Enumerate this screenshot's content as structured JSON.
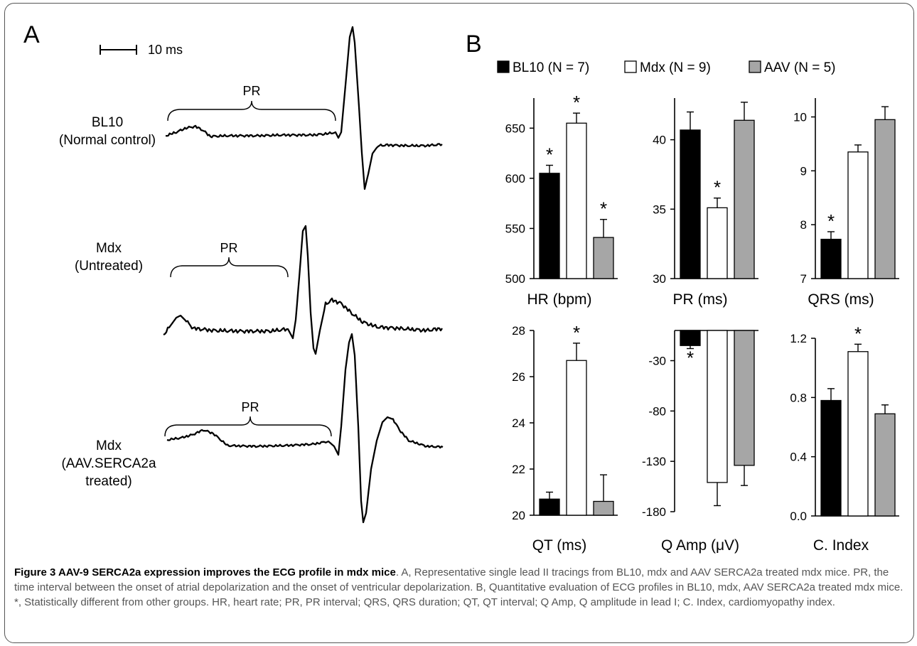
{
  "panel_a": {
    "label": "A",
    "scale_bar": "10 ms",
    "pr_label": "PR",
    "tracings": [
      {
        "line1": "BL10",
        "line2": "(Normal control)",
        "line3": ""
      },
      {
        "line1": "Mdx",
        "line2": "(Untreated)",
        "line3": ""
      },
      {
        "line1": "Mdx",
        "line2": "(AAV.SERCA2a",
        "line3": "treated)"
      }
    ]
  },
  "panel_b": {
    "label": "B",
    "legend": [
      "BL10 (N = 7)",
      "Mdx (N = 9)",
      "AAV (N = 5)"
    ]
  },
  "colors": {
    "bl10": "#000000",
    "mdx": "#ffffff",
    "aav": "#a6a6a6"
  },
  "chart_data": [
    {
      "type": "bar",
      "xlabel": "HR (bpm)",
      "categories": [
        "BL10",
        "Mdx",
        "AAV"
      ],
      "values": [
        605,
        655,
        541
      ],
      "errors": [
        8,
        10,
        18
      ],
      "significant": [
        true,
        true,
        true
      ],
      "ylim": [
        500,
        680
      ],
      "ticks": [
        500,
        550,
        600,
        650
      ]
    },
    {
      "type": "bar",
      "xlabel": "PR (ms)",
      "categories": [
        "BL10",
        "Mdx",
        "AAV"
      ],
      "values": [
        40.7,
        35.1,
        41.4
      ],
      "errors": [
        1.3,
        0.7,
        1.3
      ],
      "significant": [
        false,
        true,
        false
      ],
      "ylim": [
        30,
        43
      ],
      "ticks": [
        30,
        35,
        40
      ]
    },
    {
      "type": "bar",
      "xlabel": "QRS (ms)",
      "categories": [
        "BL10",
        "Mdx",
        "AAV"
      ],
      "values": [
        7.73,
        9.35,
        9.95
      ],
      "errors": [
        0.14,
        0.13,
        0.24
      ],
      "significant": [
        true,
        false,
        false
      ],
      "ylim": [
        7,
        10.35
      ],
      "ticks": [
        7,
        8,
        9,
        10
      ]
    },
    {
      "type": "bar",
      "xlabel": "QT (ms)",
      "categories": [
        "BL10",
        "Mdx",
        "AAV"
      ],
      "values": [
        20.7,
        26.7,
        20.6
      ],
      "errors": [
        0.3,
        0.75,
        1.15
      ],
      "significant": [
        false,
        true,
        false
      ],
      "ylim": [
        20,
        28
      ],
      "ticks": [
        20,
        22,
        24,
        26,
        28
      ]
    },
    {
      "type": "bar",
      "xlabel": "Q Amp (μV)",
      "categories": [
        "BL10",
        "Mdx",
        "AAV"
      ],
      "values": [
        -15,
        -151,
        -134
      ],
      "errors": [
        3,
        23,
        20
      ],
      "significant": [
        true,
        false,
        false
      ],
      "ylim": [
        -180,
        0
      ],
      "ticks": [
        -30,
        -80,
        -130,
        -180
      ]
    },
    {
      "type": "bar",
      "xlabel": "C. Index",
      "categories": [
        "BL10",
        "Mdx",
        "AAV"
      ],
      "values": [
        0.78,
        1.11,
        0.69
      ],
      "errors": [
        0.08,
        0.05,
        0.06
      ],
      "significant": [
        false,
        true,
        false
      ],
      "ylim": [
        0,
        1.2
      ],
      "ticks": [
        "0.0",
        "0.4",
        "0.8",
        "1.2"
      ]
    }
  ],
  "caption": {
    "title": "Figure 3 AAV-9 SERCA2a expression improves the ECG profile in mdx mice",
    "body": ". A, Representative single lead II tracings from BL10, mdx and AAV SERCA2a treated mdx mice. PR, the time interval between the onset of atrial depolarization and the onset of ventricular depolarization. B, Quantitative evaluation of ECG profiles in BL10, mdx, AAV SERCA2a treated mdx mice. *, Statistically different from other groups. HR, heart rate; PR, PR interval; QRS, QRS duration; QT, QT interval; Q Amp, Q amplitude in lead I; C. Index, cardiomyopathy index."
  }
}
